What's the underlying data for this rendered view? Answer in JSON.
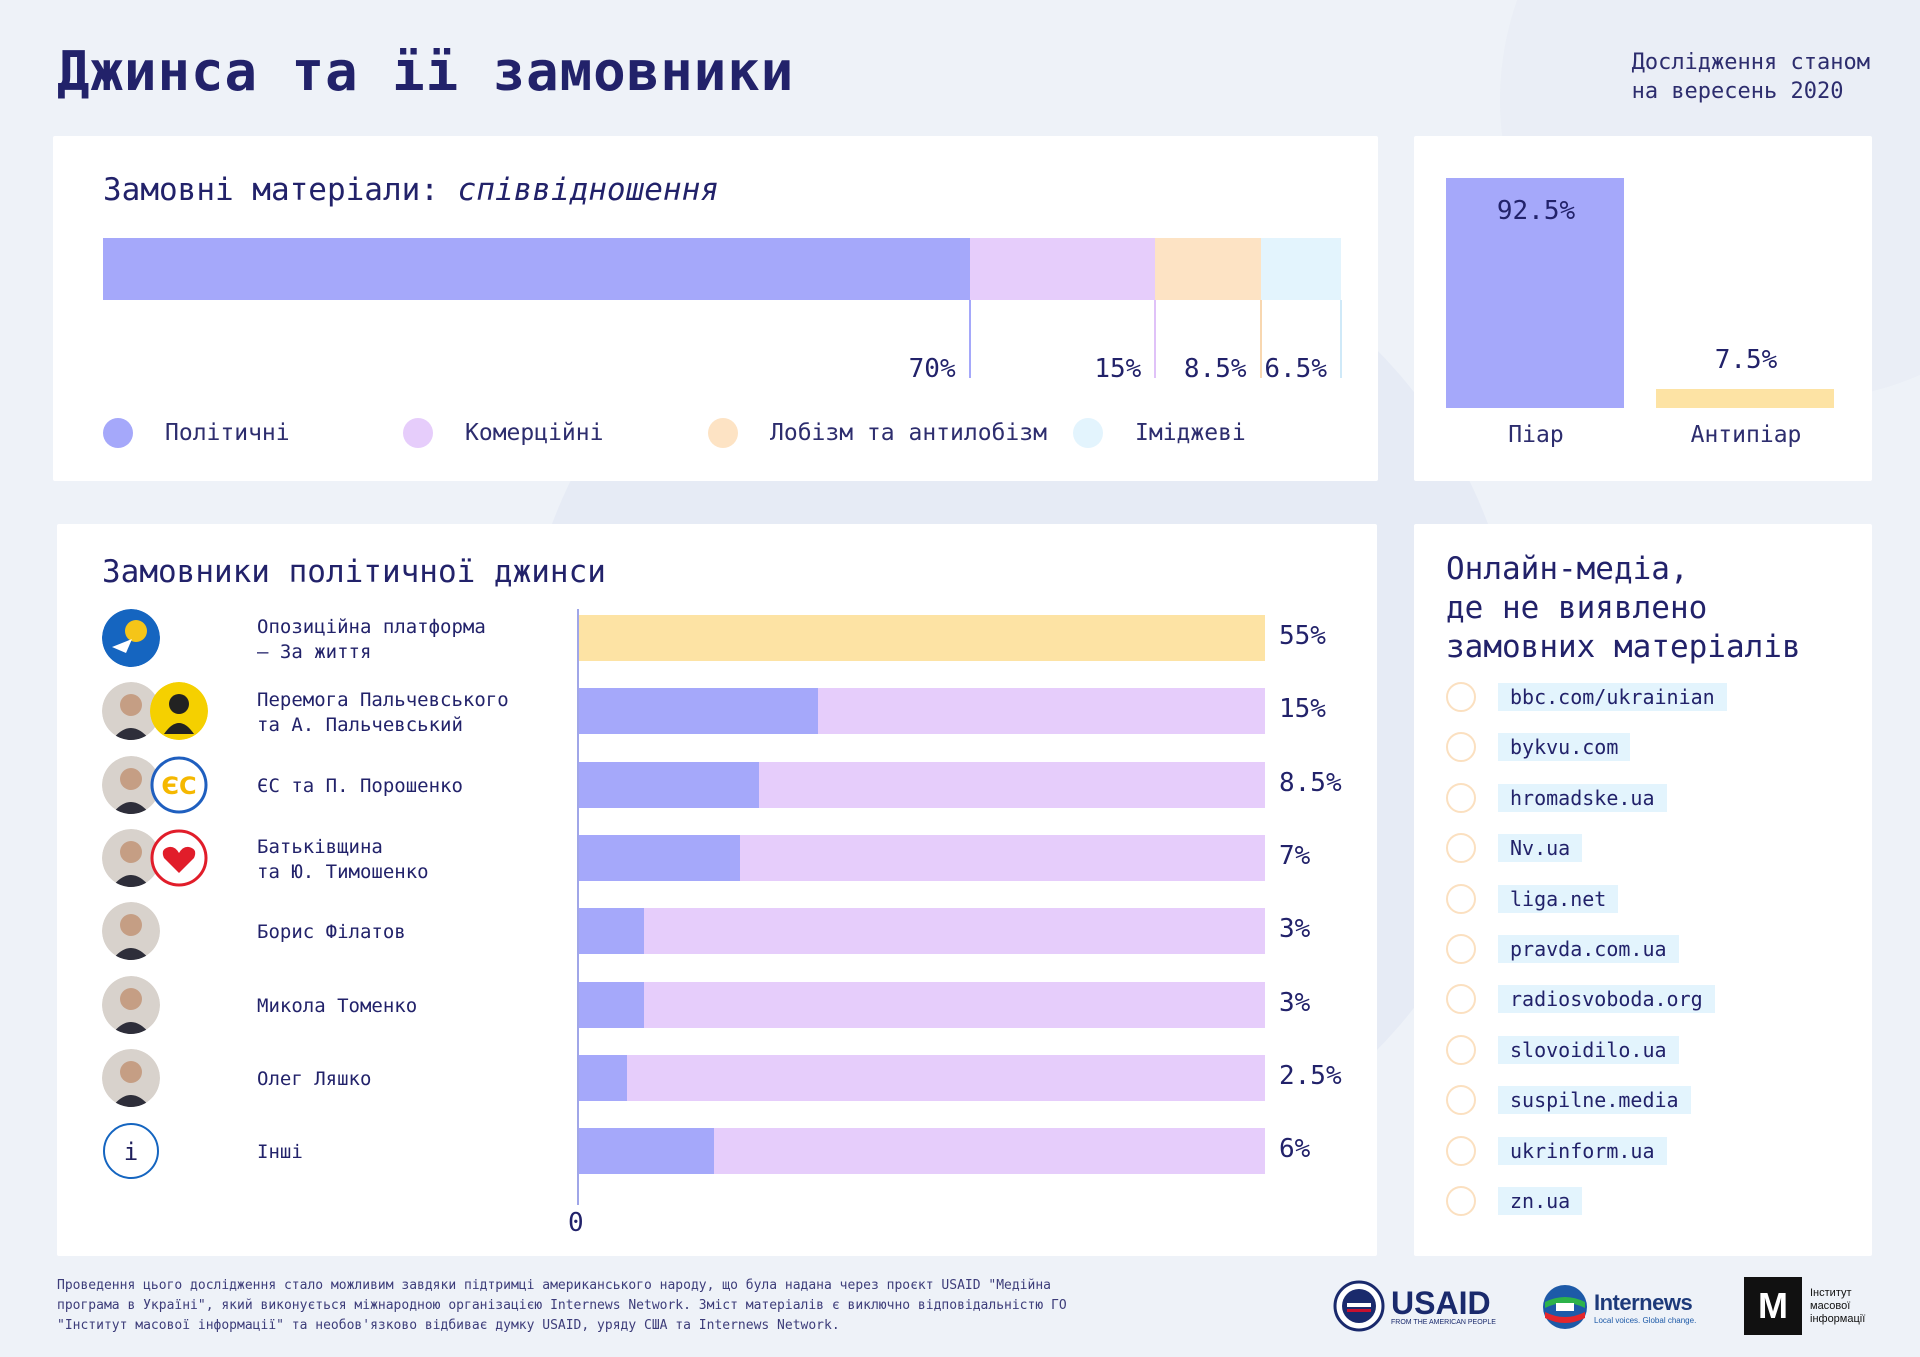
{
  "header": {
    "title": "Джинса та її замовники",
    "subtitle_line1": "Дослідження станом",
    "subtitle_line2": "на вересень 2020"
  },
  "ratio": {
    "title_main": "Замовні матеріали:",
    "title_italic": "співвідношення",
    "segments": [
      {
        "name": "Політичні",
        "value": 70,
        "label": "70%",
        "color": "#a5a8fa"
      },
      {
        "name": "Комерційні",
        "value": 15,
        "label": "15%",
        "color": "#e6cdfb"
      },
      {
        "name": "Лобізм та антилобізм",
        "value": 8.5,
        "label": "8.5%",
        "color": "#fde3c4"
      },
      {
        "name": "Іміджеві",
        "value": 6.5,
        "label": "6.5%",
        "color": "#e3f4fd"
      }
    ]
  },
  "pr": {
    "items": [
      {
        "name": "Піар",
        "value": 92.5,
        "label": "92.5%",
        "color": "#a5a8fa"
      },
      {
        "name": "Антипіар",
        "value": 7.5,
        "label": "7.5%",
        "color": "#fde3a4"
      }
    ]
  },
  "clients": {
    "title": "Замовники політичної джинси",
    "axis_zero": "0",
    "rows": [
      {
        "name": "Опозиційна платформа\n– За життя",
        "value": 55,
        "label": "55%",
        "inner": 55,
        "color": "#fde3a4",
        "full": true
      },
      {
        "name": "Перемога Пальчевського\nта А. Пальчевський",
        "value": 15,
        "label": "15%",
        "inner": 0.348
      },
      {
        "name": "ЄС та П. Порошенко",
        "value": 8.5,
        "label": "8.5%",
        "inner": 0.262
      },
      {
        "name": "Батьківщина\nта Ю. Тимошенко",
        "value": 7,
        "label": "7%",
        "inner": 0.235
      },
      {
        "name": "Борис Філатов",
        "value": 3,
        "label": "3%",
        "inner": 0.095
      },
      {
        "name": "Микола Томенко",
        "value": 3,
        "label": "3%",
        "inner": 0.095
      },
      {
        "name": "Олег Ляшко",
        "value": 2.5,
        "label": "2.5%",
        "inner": 0.07
      },
      {
        "name": "Інші",
        "value": 6,
        "label": "6%",
        "inner": 0.197
      }
    ],
    "others_icon_letter": "i"
  },
  "media": {
    "title": "Онлайн-медіа,\nде не виявлено\nзамовних матеріалів",
    "items": [
      "bbc.com/ukrainian",
      "bykvu.com",
      "hromadske.ua",
      "Nv.ua",
      "liga.net",
      "pravda.com.ua",
      "radiosvoboda.org",
      "slovoidilo.ua",
      "suspilne.media",
      "ukrinform.ua",
      "zn.ua"
    ]
  },
  "footer": {
    "text": "Проведення цього дослідження стало можливим завдяки підтримці американського народу, що була надана через проєкт USAID \"Медійна програма в Україні\", який виконується міжнародною організацією Internews Network. Зміст матеріалів є виключно відповідальністю ГО \"Інститут масової інформації\" та необов'язково відбиває думку USAID, уряду США та Internews Network.",
    "usaid_name": "USAID",
    "usaid_tagline": "FROM THE AMERICAN PEOPLE",
    "internews_name": "Internews",
    "internews_tagline": "Local voices. Global change.",
    "imi_text": "Інститут\nмасової\nінформації"
  }
}
